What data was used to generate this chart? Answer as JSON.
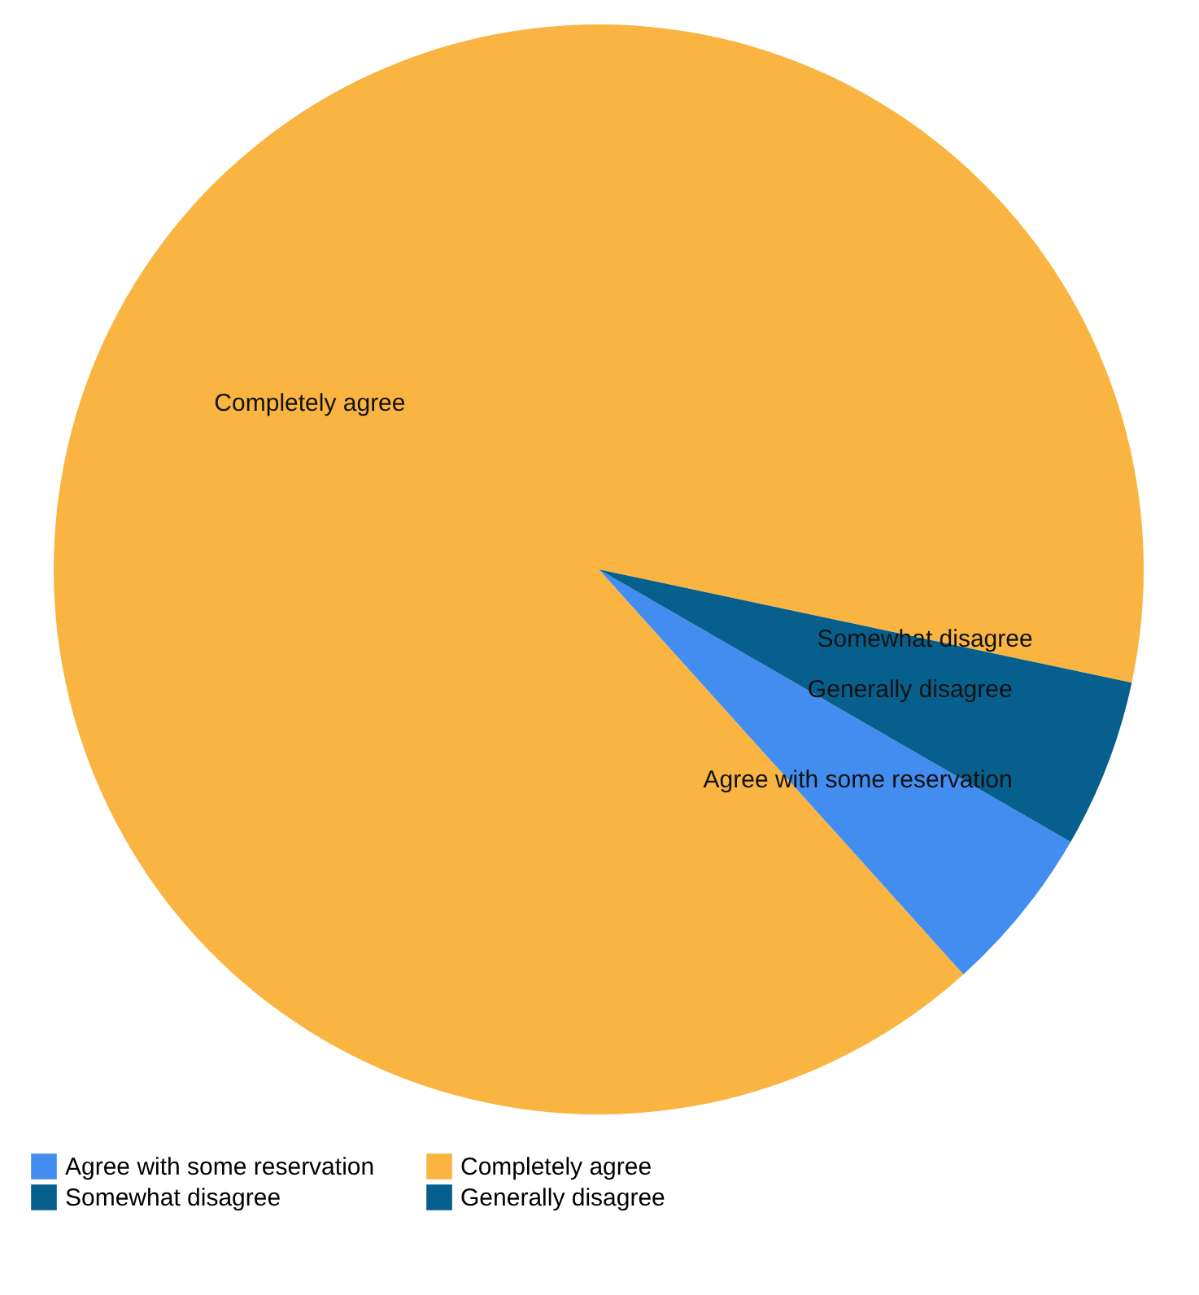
{
  "chart_data": {
    "type": "pie",
    "categories": [
      "Agree with some reservation",
      "Completely agree",
      "Somewhat disagree",
      "Generally disagree"
    ],
    "values": [
      5,
      90,
      0,
      5
    ],
    "colors": [
      "#438df0",
      "#f9b441",
      "#065f8c",
      "#065f8c"
    ],
    "legend": "bottom"
  }
}
